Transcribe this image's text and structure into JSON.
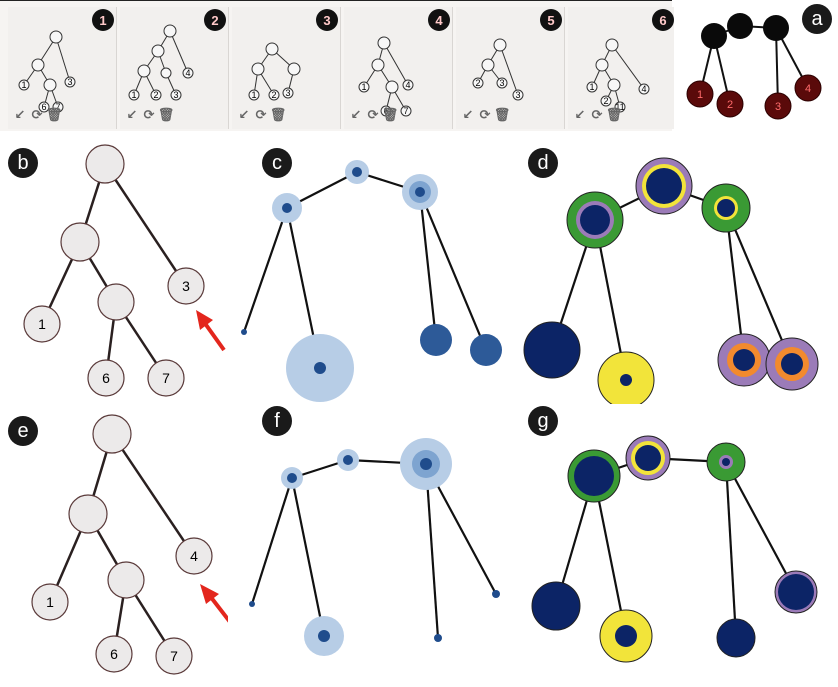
{
  "thumbnails": [
    {
      "badge": "1",
      "labels": [
        "1",
        "3",
        "6",
        "7"
      ]
    },
    {
      "badge": "2",
      "labels": [
        "1",
        "2",
        "3",
        "4"
      ]
    },
    {
      "badge": "3",
      "labels": [
        "1",
        "2",
        "3"
      ]
    },
    {
      "badge": "4",
      "labels": [
        "1",
        "6",
        "7",
        "4"
      ]
    },
    {
      "badge": "5",
      "labels": [
        "2",
        "3",
        "3"
      ]
    },
    {
      "badge": "6",
      "labels": [
        "1",
        "2",
        "11",
        "4"
      ]
    }
  ],
  "thumb_tools": {
    "edit": "↙",
    "refresh": "⟳",
    "delete": "🗑"
  },
  "panel_letters": {
    "a": "a",
    "b": "b",
    "c": "c",
    "d": "d",
    "e": "e",
    "f": "f",
    "g": "g"
  },
  "panel_a": {
    "labels": [
      "1",
      "2",
      "3",
      "4"
    ]
  },
  "panel_b": {
    "labels": [
      "1",
      "3",
      "6",
      "7"
    ]
  },
  "panel_e": {
    "labels": [
      "1",
      "4",
      "6",
      "7"
    ]
  },
  "colors": {
    "navy": "#0c2466",
    "green": "#3a9a34",
    "yellow": "#f2e43a",
    "purple": "#9b7bb8",
    "orange": "#f28a2e",
    "light_blue": "#b7cde6",
    "mid_blue": "#2d5a98",
    "dark_red": "#5a0a0a",
    "arrow_red": "#e3261d",
    "node_fill": "#ece9ea"
  }
}
